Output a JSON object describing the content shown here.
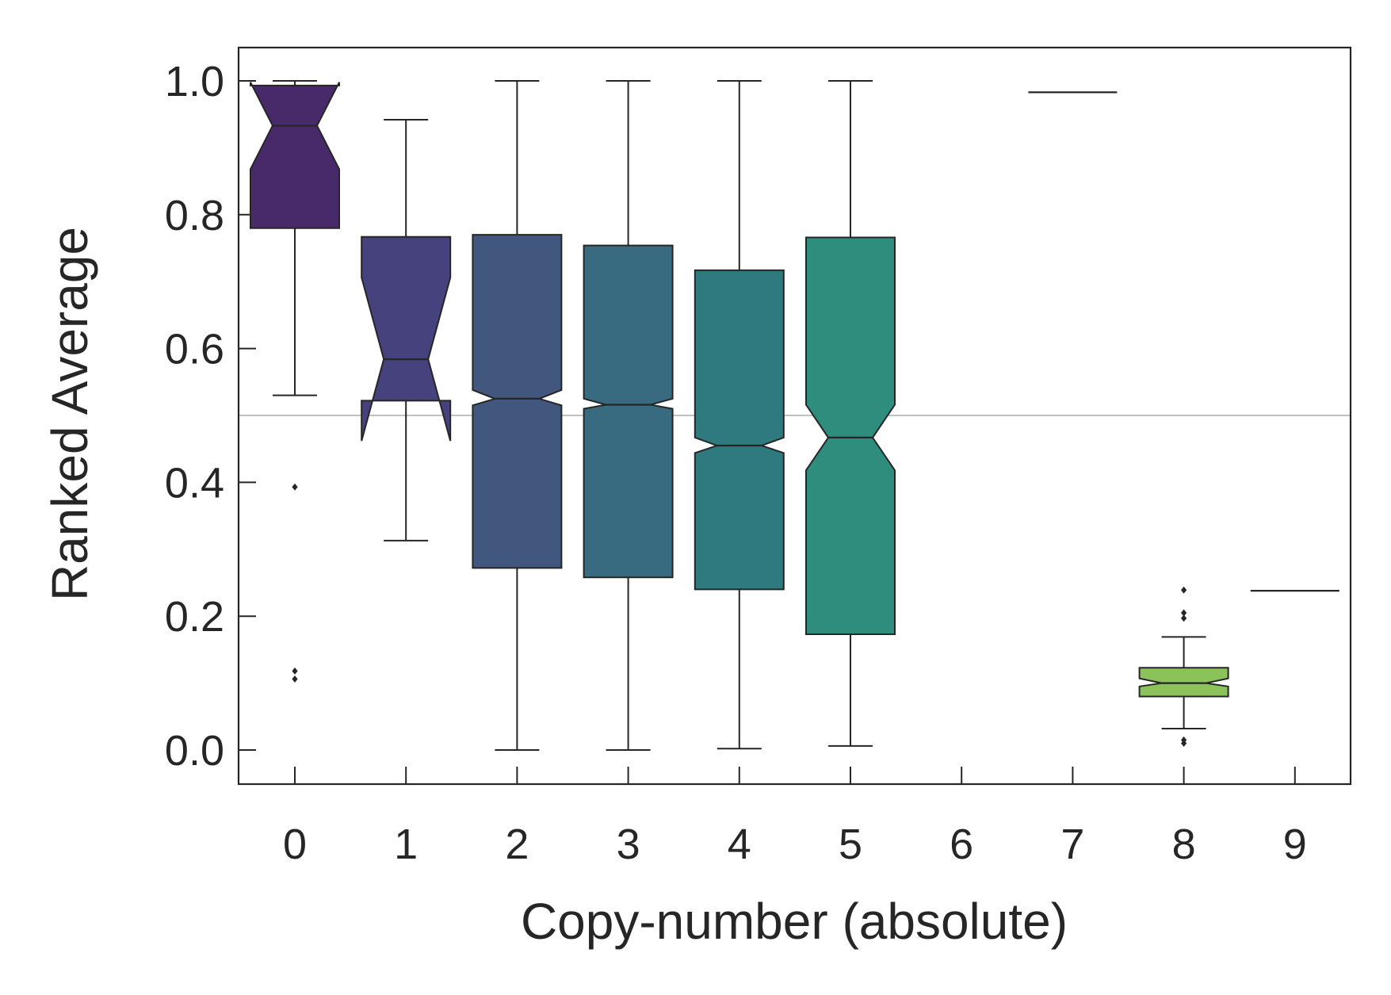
{
  "chart_data": {
    "type": "box",
    "notched": true,
    "title": "",
    "xlabel": "Copy-number (absolute)",
    "ylabel": "Ranked Average",
    "categories": [
      "0",
      "1",
      "2",
      "3",
      "4",
      "5",
      "6",
      "7",
      "8",
      "9"
    ],
    "xlim": [
      -0.5,
      9.5
    ],
    "ylim": [
      -0.05,
      1.05
    ],
    "yticks": [
      0.0,
      0.2,
      0.4,
      0.6,
      0.8,
      1.0
    ],
    "ytick_labels": [
      "0.0",
      "0.2",
      "0.4",
      "0.6",
      "0.8",
      "1.0"
    ],
    "reference_line": 0.5,
    "grid": false,
    "legend": "none",
    "boxes": [
      {
        "category": "0",
        "whisker_low": 0.53,
        "q1": 0.78,
        "median": 0.933,
        "q3": 0.993,
        "whisker_high": 1.0,
        "notch_low": 0.868,
        "notch_high": 0.998,
        "outliers": [
          0.393,
          0.118,
          0.106
        ],
        "color": "#482a6a"
      },
      {
        "category": "1",
        "whisker_low": 0.313,
        "q1": 0.522,
        "median": 0.584,
        "q3": 0.767,
        "whisker_high": 0.942,
        "notch_low": 0.462,
        "notch_high": 0.706,
        "outliers": [],
        "color": "#46427e"
      },
      {
        "category": "2",
        "whisker_low": 0.0,
        "q1": 0.272,
        "median": 0.525,
        "q3": 0.77,
        "whisker_high": 1.0,
        "notch_low": 0.515,
        "notch_high": 0.538,
        "outliers": [],
        "color": "#41577d"
      },
      {
        "category": "3",
        "whisker_low": 0.0,
        "q1": 0.258,
        "median": 0.516,
        "q3": 0.754,
        "whisker_high": 1.0,
        "notch_low": 0.51,
        "notch_high": 0.525,
        "outliers": [],
        "color": "#386b7f"
      },
      {
        "category": "4",
        "whisker_low": 0.002,
        "q1": 0.24,
        "median": 0.455,
        "q3": 0.717,
        "whisker_high": 1.0,
        "notch_low": 0.444,
        "notch_high": 0.467,
        "outliers": [],
        "color": "#2f7a7e"
      },
      {
        "category": "5",
        "whisker_low": 0.006,
        "q1": 0.173,
        "median": 0.467,
        "q3": 0.766,
        "whisker_high": 1.0,
        "notch_low": 0.418,
        "notch_high": 0.516,
        "outliers": [],
        "color": "#2f8d7d"
      },
      {
        "category": "6",
        "empty": true
      },
      {
        "category": "7",
        "single_value": 0.983
      },
      {
        "category": "8",
        "whisker_low": 0.032,
        "q1": 0.08,
        "median": 0.1,
        "q3": 0.123,
        "whisker_high": 0.169,
        "notch_low": 0.095,
        "notch_high": 0.107,
        "outliers": [
          0.239,
          0.205,
          0.197,
          0.015,
          0.01
        ],
        "color": "#8bc25a"
      },
      {
        "category": "9",
        "single_value": 0.238
      }
    ],
    "colors": {
      "axis": "#262626",
      "reference_line": "#9c9c9c",
      "box_edge": "#262626"
    }
  }
}
